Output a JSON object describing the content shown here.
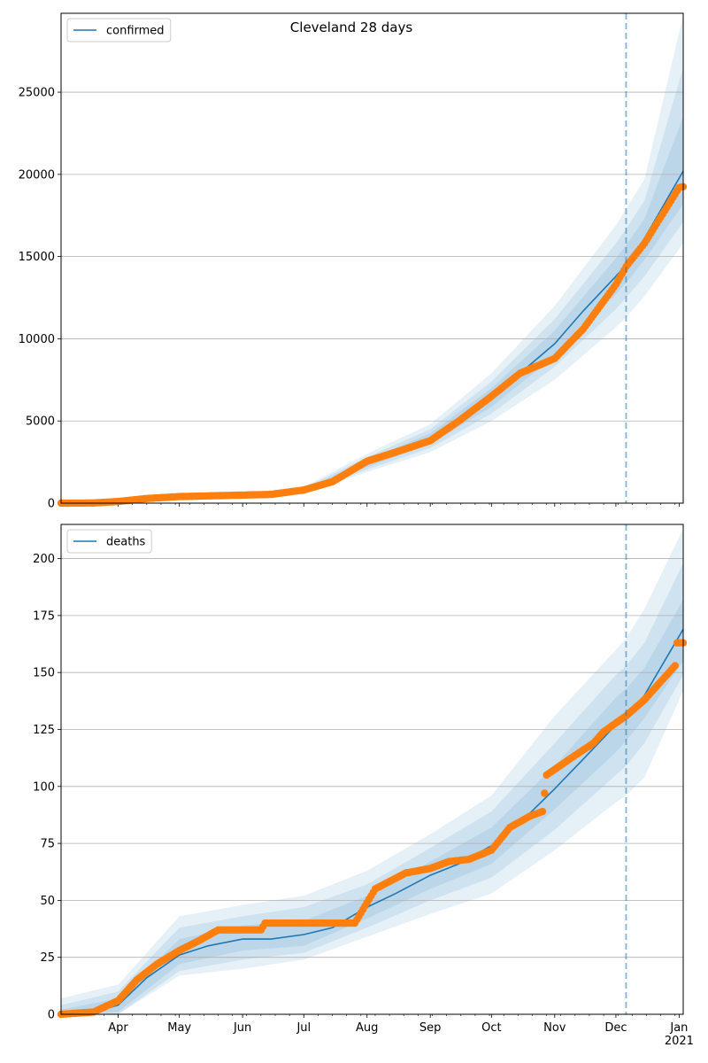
{
  "figure": {
    "title": "Cleveland 28 days"
  },
  "chart_data": [
    {
      "type": "line",
      "legend": [
        "confirmed"
      ],
      "legend_position": "upper-left",
      "grid": "y",
      "title": "Cleveland 28 days",
      "xlim": [
        "2020-03-04",
        "2021-01-03"
      ],
      "ylim": [
        0,
        29800
      ],
      "yticks": [
        0,
        5000,
        10000,
        15000,
        20000,
        25000
      ],
      "xtick_labels": [],
      "forecast_start": "2020-12-06",
      "series": [
        {
          "name": "confirmed",
          "kind": "model-median",
          "color": "#1f77b4",
          "points": [
            [
              "2020-03-04",
              0
            ],
            [
              "2020-03-20",
              10
            ],
            [
              "2020-04-01",
              90
            ],
            [
              "2020-04-15",
              280
            ],
            [
              "2020-05-01",
              420
            ],
            [
              "2020-05-15",
              460
            ],
            [
              "2020-06-01",
              480
            ],
            [
              "2020-06-15",
              520
            ],
            [
              "2020-07-01",
              760
            ],
            [
              "2020-07-15",
              1250
            ],
            [
              "2020-08-01",
              2400
            ],
            [
              "2020-08-15",
              3150
            ],
            [
              "2020-09-01",
              3900
            ],
            [
              "2020-09-15",
              5000
            ],
            [
              "2020-10-01",
              6400
            ],
            [
              "2020-10-15",
              7900
            ],
            [
              "2020-11-01",
              9700
            ],
            [
              "2020-11-15",
              11700
            ],
            [
              "2020-12-01",
              13800
            ],
            [
              "2020-12-06",
              14500
            ],
            [
              "2020-12-15",
              16100
            ],
            [
              "2021-01-03",
              20200
            ]
          ]
        },
        {
          "name": "",
          "kind": "observed",
          "color": "#ff7f0e",
          "points": [
            [
              "2020-03-04",
              0
            ],
            [
              "2020-03-20",
              10
            ],
            [
              "2020-04-01",
              100
            ],
            [
              "2020-04-15",
              280
            ],
            [
              "2020-05-01",
              400
            ],
            [
              "2020-05-15",
              440
            ],
            [
              "2020-06-01",
              490
            ],
            [
              "2020-06-15",
              530
            ],
            [
              "2020-07-01",
              800
            ],
            [
              "2020-07-15",
              1300
            ],
            [
              "2020-08-01",
              2550
            ],
            [
              "2020-08-15",
              3100
            ],
            [
              "2020-09-01",
              3800
            ],
            [
              "2020-09-15",
              5000
            ],
            [
              "2020-10-01",
              6500
            ],
            [
              "2020-10-15",
              7900
            ],
            [
              "2020-11-01",
              8800
            ],
            [
              "2020-11-15",
              10600
            ],
            [
              "2020-12-01",
              13300
            ],
            [
              "2020-12-06",
              14400
            ],
            [
              "2020-12-15",
              15800
            ],
            [
              "2021-01-01",
              19200
            ],
            [
              "2021-01-03",
              19250
            ]
          ]
        }
      ],
      "bands": [
        {
          "opacity": 0.11,
          "points": [
            [
              "2020-03-04",
              0,
              80
            ],
            [
              "2020-04-01",
              30,
              180
            ],
            [
              "2020-05-01",
              330,
              540
            ],
            [
              "2020-06-01",
              380,
              620
            ],
            [
              "2020-07-01",
              560,
              980
            ],
            [
              "2020-08-01",
              1900,
              3000
            ],
            [
              "2020-09-01",
              3100,
              4800
            ],
            [
              "2020-10-01",
              5000,
              7900
            ],
            [
              "2020-11-01",
              7500,
              12000
            ],
            [
              "2020-12-01",
              10700,
              16900
            ],
            [
              "2020-12-06",
              11300,
              17900
            ],
            [
              "2020-12-15",
              12600,
              19700
            ],
            [
              "2021-01-03",
              15800,
              29700
            ]
          ]
        },
        {
          "opacity": 0.11,
          "points": [
            [
              "2020-03-04",
              0,
              60
            ],
            [
              "2020-04-01",
              45,
              150
            ],
            [
              "2020-05-01",
              360,
              490
            ],
            [
              "2020-06-01",
              410,
              560
            ],
            [
              "2020-07-01",
              620,
              900
            ],
            [
              "2020-08-01",
              2050,
              2800
            ],
            [
              "2020-09-01",
              3350,
              4500
            ],
            [
              "2020-10-01",
              5450,
              7400
            ],
            [
              "2020-11-01",
              8300,
              11200
            ],
            [
              "2020-12-01",
              11800,
              15800
            ],
            [
              "2020-12-06",
              12500,
              16700
            ],
            [
              "2020-12-15",
              13800,
              18400
            ],
            [
              "2021-01-03",
              17100,
              26500
            ]
          ]
        },
        {
          "opacity": 0.11,
          "points": [
            [
              "2020-03-04",
              0,
              40
            ],
            [
              "2020-04-01",
              60,
              125
            ],
            [
              "2020-05-01",
              385,
              455
            ],
            [
              "2020-06-01",
              440,
              525
            ],
            [
              "2020-07-01",
              680,
              840
            ],
            [
              "2020-08-01",
              2200,
              2620
            ],
            [
              "2020-09-01",
              3600,
              4250
            ],
            [
              "2020-10-01",
              5850,
              7000
            ],
            [
              "2020-11-01",
              8950,
              10500
            ],
            [
              "2020-12-01",
              12700,
              14900
            ],
            [
              "2020-12-06",
              13400,
              15700
            ],
            [
              "2020-12-15",
              14800,
              17300
            ],
            [
              "2021-01-03",
              18200,
              23500
            ]
          ]
        }
      ]
    },
    {
      "type": "line",
      "legend": [
        "deaths"
      ],
      "legend_position": "upper-left",
      "grid": "y",
      "xlim": [
        "2020-03-04",
        "2021-01-03"
      ],
      "ylim": [
        0,
        215
      ],
      "yticks": [
        0,
        25,
        50,
        75,
        100,
        125,
        150,
        175,
        200
      ],
      "xtick_labels": [
        "Apr",
        "May",
        "Jun",
        "Jul",
        "Aug",
        "Sep",
        "Oct",
        "Nov",
        "Dec",
        "Jan",
        "2021"
      ],
      "forecast_start": "2020-12-06",
      "series": [
        {
          "name": "deaths",
          "kind": "model-median",
          "color": "#1f77b4",
          "points": [
            [
              "2020-03-04",
              0
            ],
            [
              "2020-03-20",
              1
            ],
            [
              "2020-04-01",
              4
            ],
            [
              "2020-04-15",
              16
            ],
            [
              "2020-05-01",
              26
            ],
            [
              "2020-05-15",
              30
            ],
            [
              "2020-06-01",
              33
            ],
            [
              "2020-06-15",
              33
            ],
            [
              "2020-07-01",
              35
            ],
            [
              "2020-07-15",
              38
            ],
            [
              "2020-08-01",
              47
            ],
            [
              "2020-08-15",
              53
            ],
            [
              "2020-09-01",
              61
            ],
            [
              "2020-09-15",
              66
            ],
            [
              "2020-10-01",
              74
            ],
            [
              "2020-10-15",
              84
            ],
            [
              "2020-11-01",
              99
            ],
            [
              "2020-11-15",
              112
            ],
            [
              "2020-12-01",
              127
            ],
            [
              "2020-12-06",
              131
            ],
            [
              "2020-12-15",
              140
            ],
            [
              "2021-01-03",
              169
            ]
          ]
        },
        {
          "name": "",
          "kind": "observed",
          "color": "#ff7f0e",
          "points": [
            [
              "2020-03-04",
              0
            ],
            [
              "2020-03-20",
              1
            ],
            [
              "2020-04-01",
              6
            ],
            [
              "2020-04-10",
              15
            ],
            [
              "2020-04-20",
              22
            ],
            [
              "2020-05-01",
              28
            ],
            [
              "2020-05-10",
              32
            ],
            [
              "2020-05-20",
              37
            ],
            [
              "2020-06-10",
              37
            ],
            [
              "2020-06-12",
              40
            ],
            [
              "2020-07-26",
              40
            ],
            [
              "2020-08-01",
              49
            ],
            [
              "2020-08-05",
              55
            ],
            [
              "2020-08-20",
              62
            ],
            [
              "2020-09-01",
              64
            ],
            [
              "2020-09-10",
              67
            ],
            [
              "2020-09-20",
              68
            ],
            [
              "2020-10-01",
              72
            ],
            [
              "2020-10-10",
              82
            ],
            [
              "2020-10-20",
              87
            ],
            [
              "2020-10-26",
              89
            ],
            [
              "2020-10-28",
              105
            ],
            [
              "2020-11-10",
              113
            ],
            [
              "2020-11-20",
              119
            ],
            [
              "2020-11-25",
              124
            ],
            [
              "2020-12-06",
              131
            ],
            [
              "2020-12-15",
              138
            ],
            [
              "2020-12-25",
              148
            ],
            [
              "2020-12-30",
              153
            ],
            [
              "2020-12-31",
              163
            ],
            [
              "2021-01-03",
              163
            ]
          ]
        }
      ],
      "bands": [
        {
          "opacity": 0.11,
          "points": [
            [
              "2020-03-04",
              1,
              7
            ],
            [
              "2020-04-01",
              0,
              13
            ],
            [
              "2020-05-01",
              17,
              43
            ],
            [
              "2020-06-01",
              20,
              48
            ],
            [
              "2020-07-01",
              24,
              52
            ],
            [
              "2020-08-01",
              34,
              63
            ],
            [
              "2020-09-01",
              44,
              79
            ],
            [
              "2020-10-01",
              53,
              96
            ],
            [
              "2020-11-01",
              72,
              131
            ],
            [
              "2020-12-01",
              93,
              160
            ],
            [
              "2020-12-06",
              96,
              165
            ],
            [
              "2020-12-15",
              104,
              178
            ],
            [
              "2021-01-03",
              142,
              213
            ]
          ]
        },
        {
          "opacity": 0.11,
          "points": [
            [
              "2020-03-04",
              1,
              4
            ],
            [
              "2020-04-01",
              0,
              10
            ],
            [
              "2020-05-01",
              19,
              38
            ],
            [
              "2020-06-01",
              24,
              43
            ],
            [
              "2020-07-01",
              27,
              47
            ],
            [
              "2020-08-01",
              38,
              57
            ],
            [
              "2020-09-01",
              50,
              73
            ],
            [
              "2020-10-01",
              60,
              89
            ],
            [
              "2020-11-01",
              81,
              119
            ],
            [
              "2020-12-01",
              105,
              149
            ],
            [
              "2020-12-06",
              109,
              153
            ],
            [
              "2020-12-15",
              119,
              163
            ],
            [
              "2021-01-03",
              149,
              198
            ]
          ]
        },
        {
          "opacity": 0.11,
          "points": [
            [
              "2020-03-04",
              0,
              2
            ],
            [
              "2020-04-01",
              1,
              7
            ],
            [
              "2020-05-01",
              22,
              33
            ],
            [
              "2020-06-01",
              28,
              39
            ],
            [
              "2020-07-01",
              30,
              41
            ],
            [
              "2020-08-01",
              42,
              52
            ],
            [
              "2020-09-01",
              55,
              67
            ],
            [
              "2020-10-01",
              66,
              82
            ],
            [
              "2020-11-01",
              90,
              109
            ],
            [
              "2020-12-01",
              115,
              139
            ],
            [
              "2020-12-06",
              120,
              143
            ],
            [
              "2020-12-15",
              130,
              152
            ],
            [
              "2021-01-03",
              155,
              182
            ]
          ]
        }
      ]
    }
  ]
}
